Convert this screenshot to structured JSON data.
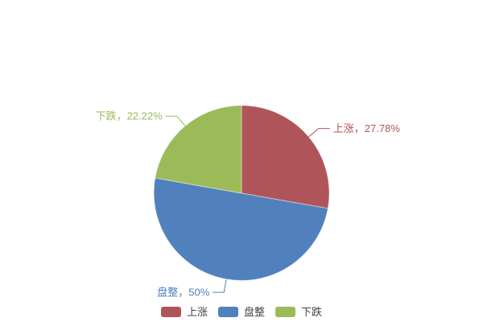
{
  "chart_data": {
    "type": "pie",
    "title": "",
    "categories": [
      "上涨",
      "盘整",
      "下跌"
    ],
    "values": [
      27.78,
      50,
      22.22
    ],
    "value_unit": "percent",
    "labels": [
      "上涨，27.78%",
      "盘整，50%",
      "下跌，22.22%"
    ],
    "colors": [
      "#AF555A",
      "#5081BD",
      "#9BBB59"
    ],
    "start_angle": "top",
    "direction": "clockwise",
    "background": "#FFFFFF",
    "legend": {
      "position": "bottom",
      "items": [
        "上涨",
        "盘整",
        "下跌"
      ]
    }
  }
}
